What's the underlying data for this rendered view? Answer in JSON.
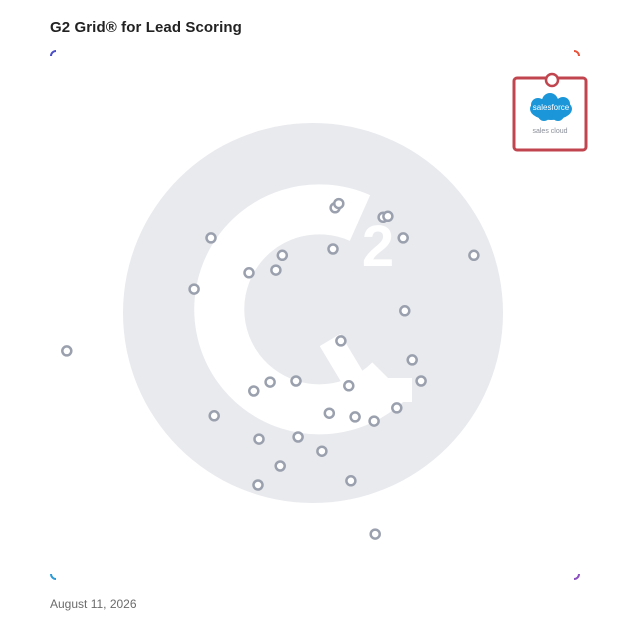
{
  "header": {
    "title": "G2 Grid® for Lead Scoring"
  },
  "footer": {
    "date": "August 11, 2026"
  },
  "featured_product": {
    "logo_text": "salesforce",
    "caption": "sales cloud",
    "highlight_color": "#c0454e",
    "logo_color": "#1b96d8"
  },
  "colors": {
    "frame_left": "#4a4ec9",
    "frame_top_right": "#e8533b",
    "frame_bottom_left": "#2a8fd9",
    "frame_bottom_right": "#8b4fbf",
    "point_stroke": "#9aa0ad",
    "watermark": "#e9eaee"
  },
  "chart_data": {
    "type": "scatter",
    "title": "G2 Grid® for Lead Scoring",
    "xlabel": "",
    "ylabel": "",
    "xlim": [
      0,
      100
    ],
    "ylim": [
      0,
      100
    ],
    "grid": "quadrants",
    "highlighted": {
      "name": "sales cloud",
      "x": 95.5,
      "y": 99.0
    },
    "series": [
      {
        "points": [
          {
            "x": 53.8,
            "y": 70.3
          },
          {
            "x": 54.5,
            "y": 71.1
          },
          {
            "x": 62.9,
            "y": 68.5
          },
          {
            "x": 63.8,
            "y": 68.7
          },
          {
            "x": 66.7,
            "y": 64.6
          },
          {
            "x": 53.4,
            "y": 62.5
          },
          {
            "x": 80.1,
            "y": 61.3
          },
          {
            "x": 30.3,
            "y": 64.6
          },
          {
            "x": 43.8,
            "y": 61.3
          },
          {
            "x": 42.6,
            "y": 58.5
          },
          {
            "x": 37.5,
            "y": 58.0
          },
          {
            "x": 27.1,
            "y": 54.9
          },
          {
            "x": 67.0,
            "y": 50.8
          },
          {
            "x": 54.9,
            "y": 45.1
          },
          {
            "x": 3.0,
            "y": 43.2
          },
          {
            "x": 68.4,
            "y": 41.5
          },
          {
            "x": 70.1,
            "y": 37.5
          },
          {
            "x": 56.4,
            "y": 36.6
          },
          {
            "x": 41.5,
            "y": 37.3
          },
          {
            "x": 46.4,
            "y": 37.5
          },
          {
            "x": 38.4,
            "y": 35.6
          },
          {
            "x": 65.5,
            "y": 32.4
          },
          {
            "x": 52.7,
            "y": 31.4
          },
          {
            "x": 57.6,
            "y": 30.7
          },
          {
            "x": 61.2,
            "y": 29.9
          },
          {
            "x": 30.9,
            "y": 30.9
          },
          {
            "x": 46.8,
            "y": 26.9
          },
          {
            "x": 39.4,
            "y": 26.5
          },
          {
            "x": 51.3,
            "y": 24.2
          },
          {
            "x": 43.4,
            "y": 21.4
          },
          {
            "x": 56.8,
            "y": 18.6
          },
          {
            "x": 39.2,
            "y": 17.8
          },
          {
            "x": 61.4,
            "y": 8.5
          }
        ]
      }
    ]
  }
}
